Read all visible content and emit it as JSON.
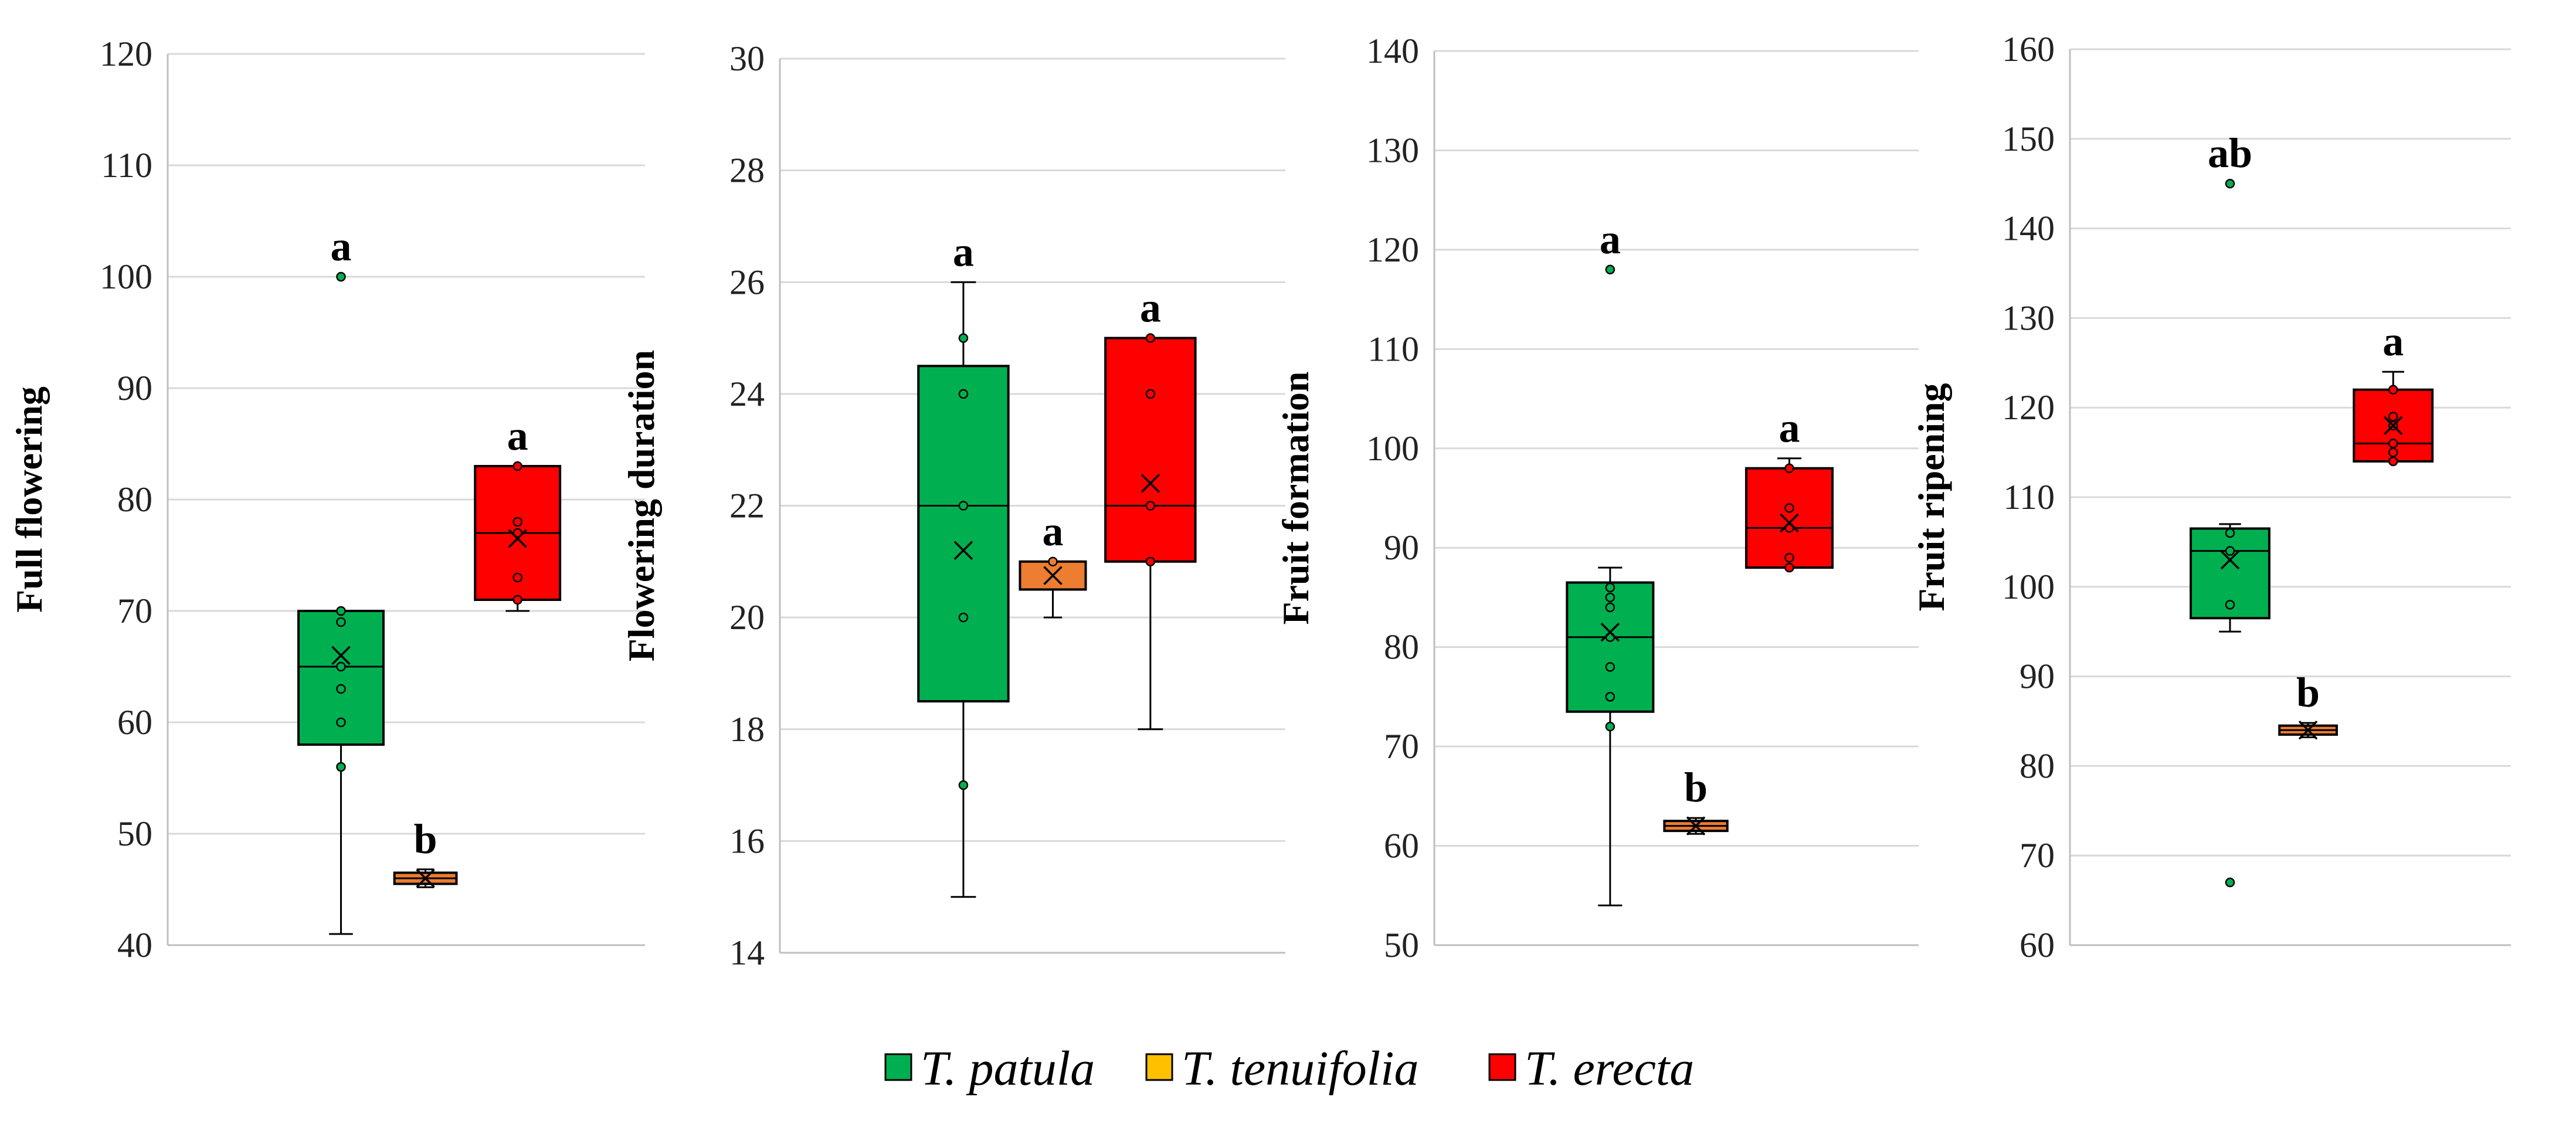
{
  "chart_data": [
    {
      "type": "box",
      "ylabel": "Full flowering",
      "ylim": [
        40,
        120
      ],
      "yticks": [
        40,
        50,
        60,
        70,
        80,
        90,
        100,
        110,
        120
      ],
      "series": [
        {
          "name": "T. patula",
          "min": 41,
          "q1": 58,
          "median": 65,
          "q3": 70,
          "max": 70,
          "mean": 66,
          "points": [
            56,
            60,
            63,
            65,
            69,
            70
          ],
          "outliers": [
            100
          ],
          "letter": "a"
        },
        {
          "name": "T. tenuifolia",
          "min": 45.2,
          "q1": 45.5,
          "median": 46,
          "q3": 46.5,
          "max": 46.8,
          "mean": 46,
          "points": [],
          "outliers": [],
          "letter": "b"
        },
        {
          "name": "T. erecta",
          "min": 70,
          "q1": 71,
          "median": 77,
          "q3": 83,
          "max": 83,
          "mean": 76.5,
          "points": [
            71,
            73,
            77,
            78,
            83
          ],
          "outliers": [],
          "letter": "a"
        }
      ]
    },
    {
      "type": "box",
      "ylabel": "Flowering duration",
      "ylim": [
        14,
        30
      ],
      "yticks": [
        14,
        16,
        18,
        20,
        22,
        24,
        26,
        28,
        30
      ],
      "series": [
        {
          "name": "T. patula",
          "min": 15,
          "q1": 18.5,
          "median": 22,
          "q3": 24.5,
          "max": 26,
          "mean": 21.2,
          "points": [
            17,
            20,
            22,
            24,
            25
          ],
          "outliers": [],
          "letter": "a"
        },
        {
          "name": "T. tenuifolia",
          "min": 20,
          "q1": 20.5,
          "median": 21,
          "q3": 21,
          "max": 21,
          "mean": 20.75,
          "points": [
            21
          ],
          "outliers": [],
          "letter": "a"
        },
        {
          "name": "T. erecta",
          "min": 18,
          "q1": 21,
          "median": 22,
          "q3": 25,
          "max": 25,
          "mean": 22.4,
          "points": [
            21,
            22,
            24,
            25
          ],
          "outliers": [],
          "letter": "a"
        }
      ]
    },
    {
      "type": "box",
      "ylabel": "Fruit formation",
      "ylim": [
        50,
        140
      ],
      "yticks": [
        50,
        60,
        70,
        80,
        90,
        100,
        110,
        120,
        130,
        140
      ],
      "series": [
        {
          "name": "T. patula",
          "min": 54,
          "q1": 73.5,
          "median": 81,
          "q3": 86.5,
          "max": 88,
          "mean": 81.5,
          "points": [
            72,
            75,
            78,
            81,
            84,
            85,
            86
          ],
          "outliers": [
            118
          ],
          "letter": "a"
        },
        {
          "name": "T. tenuifolia",
          "min": 61.2,
          "q1": 61.5,
          "median": 62,
          "q3": 62.5,
          "max": 62.8,
          "mean": 62,
          "points": [],
          "outliers": [],
          "letter": "b"
        },
        {
          "name": "T. erecta",
          "min": 88,
          "q1": 88,
          "median": 92,
          "q3": 98,
          "max": 99,
          "mean": 92.5,
          "points": [
            88,
            89,
            92,
            94,
            98
          ],
          "outliers": [],
          "letter": "a"
        }
      ]
    },
    {
      "type": "box",
      "ylabel": "Fruit ripening",
      "ylim": [
        60,
        160
      ],
      "yticks": [
        60,
        70,
        80,
        90,
        100,
        110,
        120,
        130,
        140,
        150,
        160
      ],
      "series": [
        {
          "name": "T. patula",
          "min": 95,
          "q1": 96.5,
          "median": 104,
          "q3": 106.5,
          "max": 107,
          "mean": 103,
          "points": [
            98,
            104,
            106
          ],
          "outliers": [
            145,
            67
          ],
          "letter": "ab"
        },
        {
          "name": "T. tenuifolia",
          "min": 83.2,
          "q1": 83.5,
          "median": 84,
          "q3": 84.5,
          "max": 84.8,
          "mean": 84,
          "points": [],
          "outliers": [],
          "letter": "b"
        },
        {
          "name": "T. erecta",
          "min": 114,
          "q1": 114,
          "median": 116,
          "q3": 122,
          "max": 124,
          "mean": 118,
          "points": [
            114,
            115,
            116,
            118,
            119,
            122
          ],
          "outliers": [],
          "letter": "a"
        }
      ]
    }
  ],
  "legend": [
    {
      "label": "T. patula",
      "color": "#00B050"
    },
    {
      "label": "T. tenuifolia",
      "color": "#FFC000"
    },
    {
      "label": "T. erecta",
      "color": "#FF0000"
    }
  ],
  "colors": {
    "box_fill": [
      "#00B050",
      "#ED7D31",
      "#FF0000"
    ],
    "point_fill": [
      "#00B050",
      "#ED7D31",
      "#FF0000"
    ],
    "outline": "#000000",
    "grid": "#D9D9D9",
    "axis": "#BFBFBF"
  }
}
